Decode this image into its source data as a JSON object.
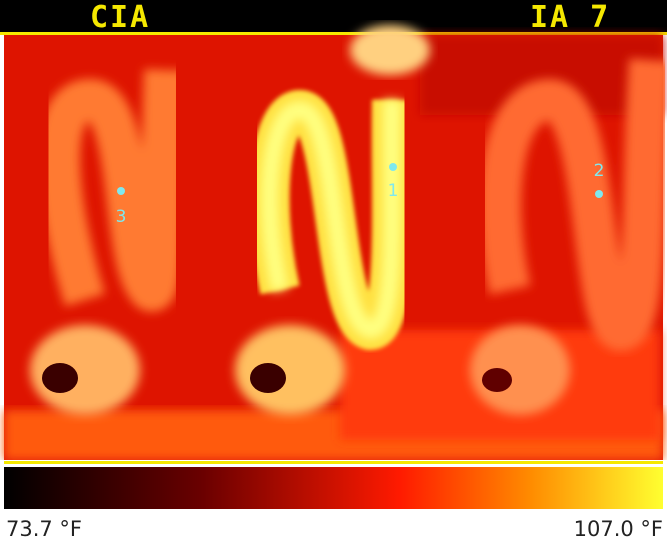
{
  "header": {
    "left": "CIA",
    "right": "IA 7"
  },
  "spots": [
    {
      "label": "1"
    },
    {
      "label": "2"
    },
    {
      "label": "3"
    }
  ],
  "scale": {
    "min_label": "73.7 °F",
    "max_label": "107.0 °F"
  }
}
